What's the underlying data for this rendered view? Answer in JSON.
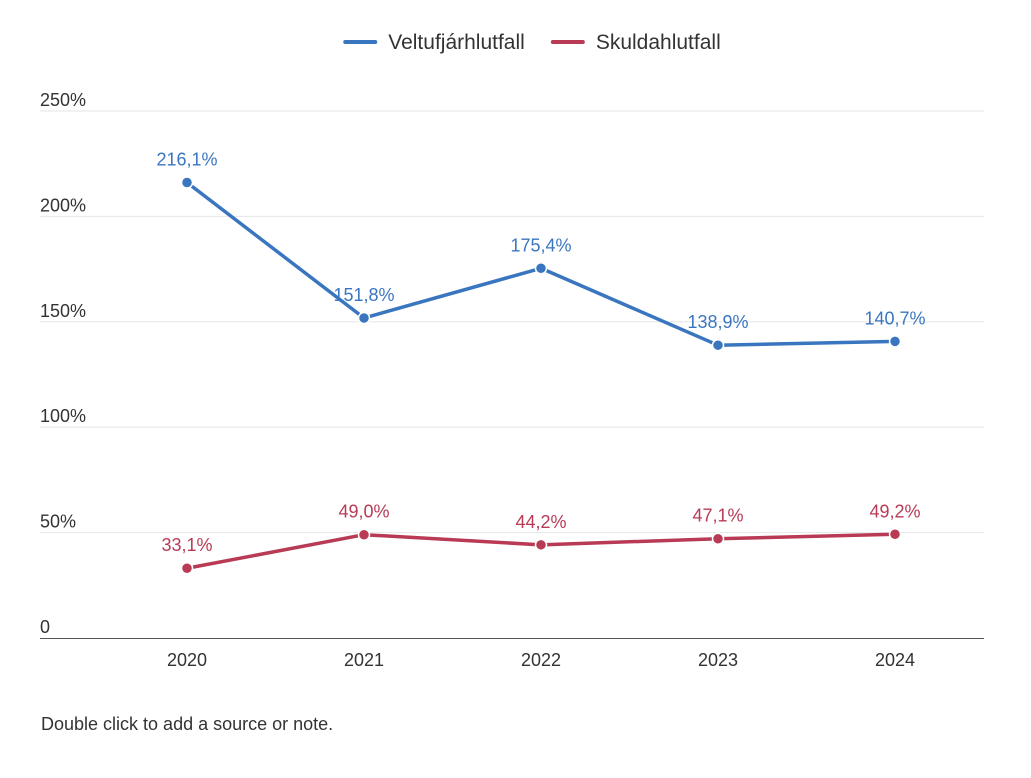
{
  "chart_data": {
    "type": "line",
    "categories": [
      "2020",
      "2021",
      "2022",
      "2023",
      "2024"
    ],
    "series": [
      {
        "name": "Veltufjárhlutfall",
        "color": "#3a76bf",
        "values": [
          216.1,
          151.8,
          175.4,
          138.9,
          140.7
        ],
        "labels": [
          "216,1%",
          "151,8%",
          "175,4%",
          "138,9%",
          "140,7%"
        ]
      },
      {
        "name": "Skuldahlutfall",
        "color": "#b83a55",
        "values": [
          33.1,
          49.0,
          44.2,
          47.1,
          49.2
        ],
        "labels": [
          "33,1%",
          "49,0%",
          "44,2%",
          "47,1%",
          "49,2%"
        ]
      }
    ],
    "y_ticks": [
      0,
      50,
      100,
      150,
      200,
      250
    ],
    "y_tick_labels": [
      "0",
      "50%",
      "100%",
      "150%",
      "200%",
      "250%"
    ],
    "ylim": [
      0,
      250
    ],
    "grid": true,
    "legend_position": "top-center",
    "title": "",
    "xlabel": "",
    "ylabel": ""
  },
  "note": "Double click to add a source or note."
}
